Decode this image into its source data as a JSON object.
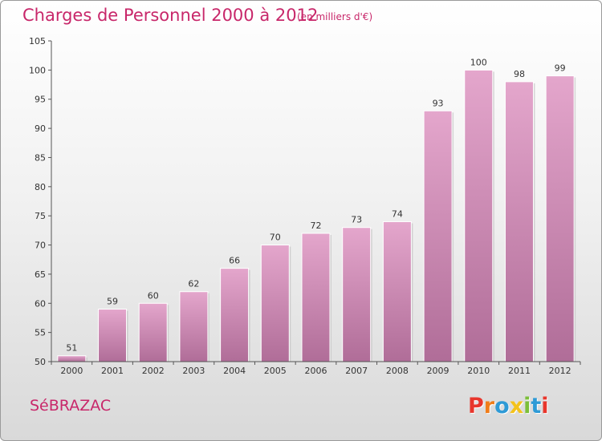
{
  "header": {
    "title": "Charges de Personnel 2000 à 2012",
    "subtitle": "(en milliers d'€)"
  },
  "footer": {
    "commune": "SéBRAZAC",
    "logo": {
      "text": "Proxiti",
      "letters": [
        {
          "char": "P",
          "color": "#e8362c"
        },
        {
          "char": "r",
          "color": "#f07d1a"
        },
        {
          "char": "o",
          "color": "#2e9ad6"
        },
        {
          "char": "x",
          "color": "#f3c21b"
        },
        {
          "char": "i",
          "color": "#7cbf3a"
        },
        {
          "char": "t",
          "color": "#2e9ad6"
        },
        {
          "char": "i",
          "color": "#e8362c"
        }
      ]
    }
  },
  "colors": {
    "title": "#c8276a",
    "bar_top": "#e4a6cc",
    "bar_bottom": "#b06d98"
  },
  "chart_data": {
    "type": "bar",
    "title": "Charges de Personnel 2000 à 2012",
    "subtitle": "(en milliers d'€)",
    "xlabel": "",
    "ylabel": "",
    "categories": [
      "2000",
      "2001",
      "2002",
      "2003",
      "2004",
      "2005",
      "2006",
      "2007",
      "2008",
      "2009",
      "2010",
      "2011",
      "2012"
    ],
    "values": [
      51,
      59,
      60,
      62,
      66,
      70,
      72,
      73,
      74,
      93,
      100,
      98,
      99
    ],
    "ylim": [
      50,
      105
    ],
    "yticks": [
      50,
      55,
      60,
      65,
      70,
      75,
      80,
      85,
      90,
      95,
      100,
      105
    ],
    "grid": false,
    "data_labels": true
  }
}
